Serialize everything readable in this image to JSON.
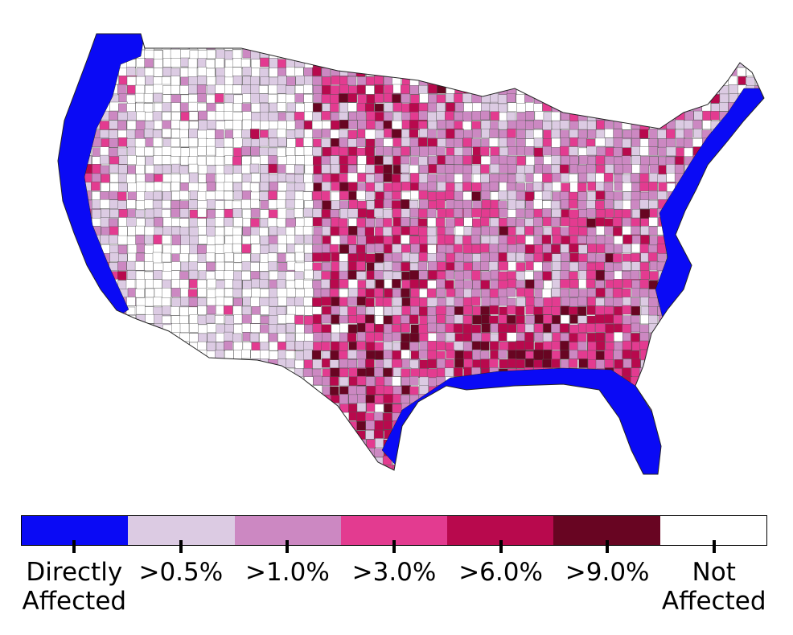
{
  "map": {
    "description_colors": {
      "directly_affected": "#0a0af5",
      "not_affected": "#ffffff",
      "border": "#333333"
    }
  },
  "legend": {
    "categories": [
      {
        "label": "Directly\nAffected",
        "color": "#0a0af5"
      },
      {
        "label": ">0.5%",
        "color": "#dccbe3"
      },
      {
        "label": ">1.0%",
        "color": "#cc88c2"
      },
      {
        "label": ">3.0%",
        "color": "#e33b90"
      },
      {
        "label": ">6.0%",
        "color": "#b8094d"
      },
      {
        "label": ">9.0%",
        "color": "#680522"
      },
      {
        "label": "Not\nAffected",
        "color": "#ffffff"
      }
    ]
  }
}
